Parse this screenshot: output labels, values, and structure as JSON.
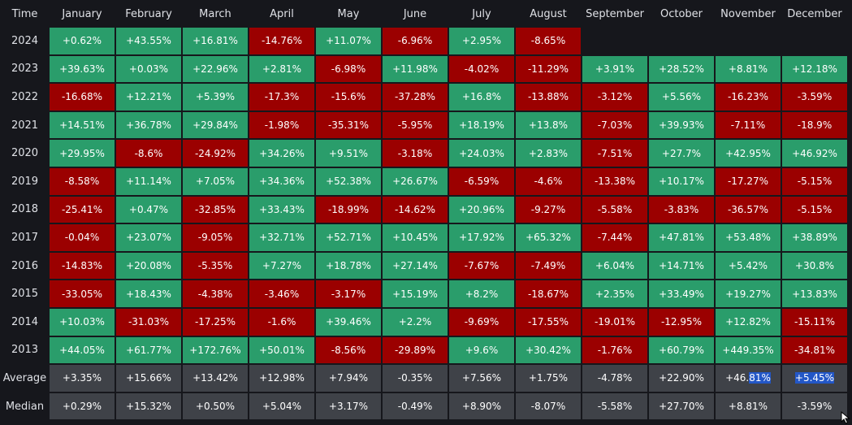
{
  "header": {
    "label": "Time",
    "months": [
      "January",
      "February",
      "March",
      "April",
      "May",
      "June",
      "July",
      "August",
      "September",
      "October",
      "November",
      "December"
    ]
  },
  "years": [
    {
      "year": "2024",
      "values": [
        "+0.62%",
        "+43.55%",
        "+16.81%",
        "-14.76%",
        "+11.07%",
        "-6.96%",
        "+2.95%",
        "-8.65%",
        "",
        "",
        "",
        ""
      ]
    },
    {
      "year": "2023",
      "values": [
        "+39.63%",
        "+0.03%",
        "+22.96%",
        "+2.81%",
        "-6.98%",
        "+11.98%",
        "-4.02%",
        "-11.29%",
        "+3.91%",
        "+28.52%",
        "+8.81%",
        "+12.18%"
      ]
    },
    {
      "year": "2022",
      "values": [
        "-16.68%",
        "+12.21%",
        "+5.39%",
        "-17.3%",
        "-15.6%",
        "-37.28%",
        "+16.8%",
        "-13.88%",
        "-3.12%",
        "+5.56%",
        "-16.23%",
        "-3.59%"
      ]
    },
    {
      "year": "2021",
      "values": [
        "+14.51%",
        "+36.78%",
        "+29.84%",
        "-1.98%",
        "-35.31%",
        "-5.95%",
        "+18.19%",
        "+13.8%",
        "-7.03%",
        "+39.93%",
        "-7.11%",
        "-18.9%"
      ]
    },
    {
      "year": "2020",
      "values": [
        "+29.95%",
        "-8.6%",
        "-24.92%",
        "+34.26%",
        "+9.51%",
        "-3.18%",
        "+24.03%",
        "+2.83%",
        "-7.51%",
        "+27.7%",
        "+42.95%",
        "+46.92%"
      ]
    },
    {
      "year": "2019",
      "values": [
        "-8.58%",
        "+11.14%",
        "+7.05%",
        "+34.36%",
        "+52.38%",
        "+26.67%",
        "-6.59%",
        "-4.6%",
        "-13.38%",
        "+10.17%",
        "-17.27%",
        "-5.15%"
      ]
    },
    {
      "year": "2018",
      "values": [
        "-25.41%",
        "+0.47%",
        "-32.85%",
        "+33.43%",
        "-18.99%",
        "-14.62%",
        "+20.96%",
        "-9.27%",
        "-5.58%",
        "-3.83%",
        "-36.57%",
        "-5.15%"
      ]
    },
    {
      "year": "2017",
      "values": [
        "-0.04%",
        "+23.07%",
        "-9.05%",
        "+32.71%",
        "+52.71%",
        "+10.45%",
        "+17.92%",
        "+65.32%",
        "-7.44%",
        "+47.81%",
        "+53.48%",
        "+38.89%"
      ]
    },
    {
      "year": "2016",
      "values": [
        "-14.83%",
        "+20.08%",
        "-5.35%",
        "+7.27%",
        "+18.78%",
        "+27.14%",
        "-7.67%",
        "-7.49%",
        "+6.04%",
        "+14.71%",
        "+5.42%",
        "+30.8%"
      ]
    },
    {
      "year": "2015",
      "values": [
        "-33.05%",
        "+18.43%",
        "-4.38%",
        "-3.46%",
        "-3.17%",
        "+15.19%",
        "+8.2%",
        "-18.67%",
        "+2.35%",
        "+33.49%",
        "+19.27%",
        "+13.83%"
      ]
    },
    {
      "year": "2014",
      "values": [
        "+10.03%",
        "-31.03%",
        "-17.25%",
        "-1.6%",
        "+39.46%",
        "+2.2%",
        "-9.69%",
        "-17.55%",
        "-19.01%",
        "-12.95%",
        "+12.82%",
        "-15.11%"
      ]
    },
    {
      "year": "2013",
      "values": [
        "+44.05%",
        "+61.77%",
        "+172.76%",
        "+50.01%",
        "-8.56%",
        "-29.89%",
        "+9.6%",
        "+30.42%",
        "-1.76%",
        "+60.79%",
        "+449.35%",
        "-34.81%"
      ]
    }
  ],
  "stats": [
    {
      "label": "Average",
      "values": [
        "+3.35%",
        "+15.66%",
        "+13.42%",
        "+12.98%",
        "+7.94%",
        "-0.35%",
        "+7.56%",
        "+1.75%",
        "-4.78%",
        "+22.90%",
        "+46.81%",
        "+5.45%"
      ]
    },
    {
      "label": "Median",
      "values": [
        "+0.29%",
        "+15.32%",
        "+0.50%",
        "+5.04%",
        "+3.17%",
        "-0.49%",
        "+8.90%",
        "-8.07%",
        "-5.58%",
        "+27.70%",
        "+8.81%",
        "-3.59%"
      ]
    }
  ],
  "selection": {
    "november_average_prefix": "+46.",
    "november_average_selected": "81%",
    "december_average": "+5.45%"
  },
  "colors": {
    "positive": "#2a9d6b",
    "negative": "#9b0000",
    "stat_cell": "#3f4248",
    "selection": "#2357c7",
    "background": "#16171c"
  },
  "icons": {
    "cursor": "mouse-pointer-icon"
  }
}
